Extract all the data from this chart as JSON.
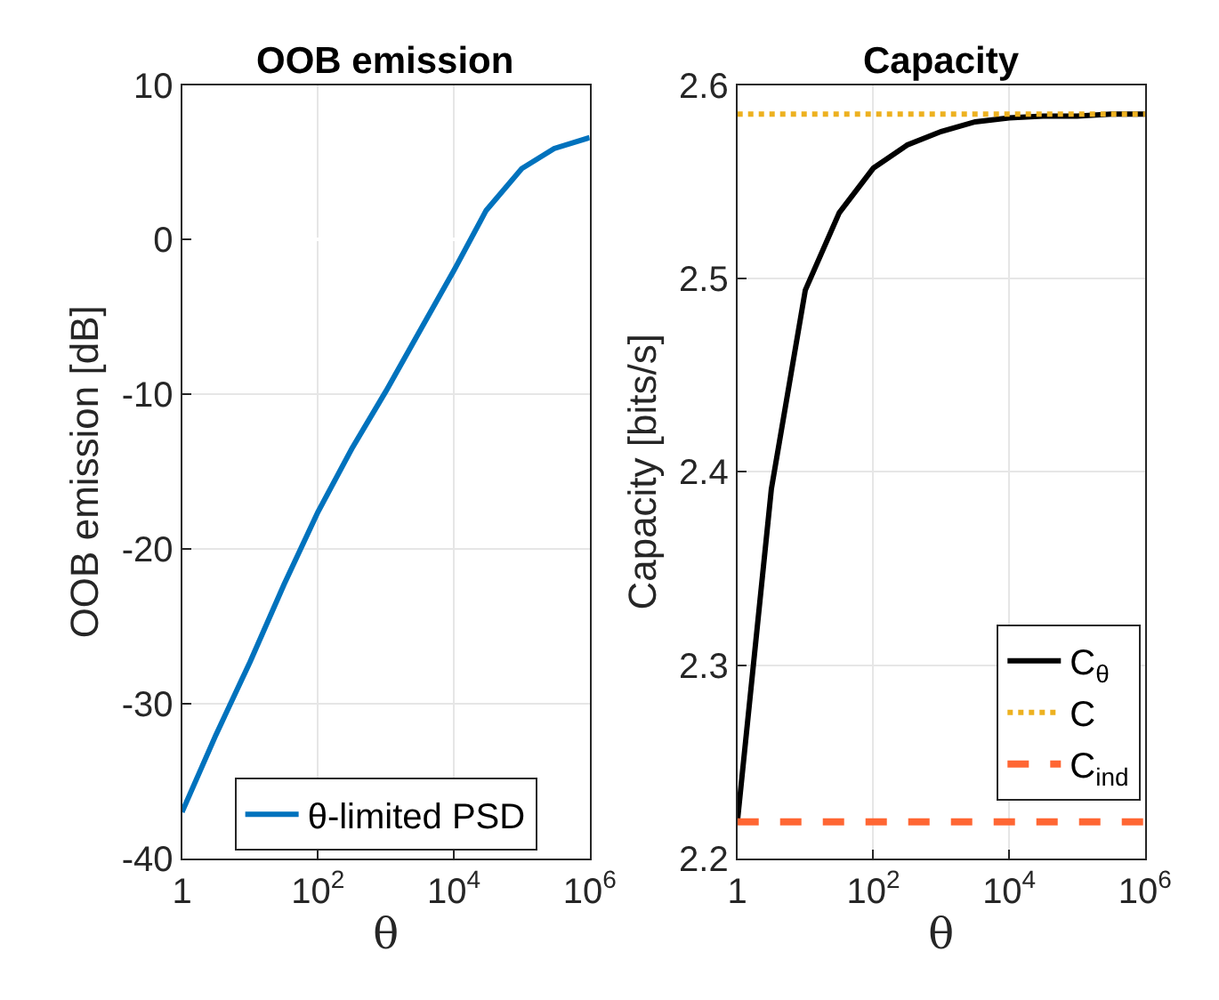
{
  "chart_data": [
    {
      "type": "line",
      "title": "OOB emission",
      "xlabel": "θ",
      "ylabel": "OOB emission [dB]",
      "log": "x",
      "grid": true,
      "legend": "bottom",
      "xlim": [
        1,
        1000000
      ],
      "xticks": [
        1,
        {
          "value": 100,
          "label": "10$^{2}$"
        },
        {
          "value": 10000,
          "label": "10$^{4}$"
        },
        {
          "value": 1000000,
          "label": "10$^{6}$"
        }
      ],
      "ylim": [
        -40,
        10
      ],
      "yticks": [
        -40,
        -30,
        -20,
        -10,
        0,
        10
      ],
      "series": [
        {
          "name": "θ-limited PSD",
          "color": "#0072bd",
          "line_style": "solid",
          "x": [
            1,
            3.16,
            10,
            31.6,
            100,
            316,
            1000,
            3162,
            10000,
            30000,
            100000,
            300000,
            1000000
          ],
          "values": [
            -37,
            -32,
            -27.3,
            -22.3,
            -17.6,
            -13.5,
            -9.8,
            -5.9,
            -2.0,
            1.9,
            4.6,
            5.9,
            6.6
          ]
        }
      ]
    },
    {
      "type": "line",
      "title": "Capacity",
      "xlabel": "θ",
      "ylabel": "Capacity [bits/s]",
      "log": "x",
      "grid": true,
      "legend": "bottom right",
      "xlim": [
        1,
        1000000
      ],
      "xticks": [
        1,
        {
          "value": 100,
          "label": "10$^{2}$"
        },
        {
          "value": 10000,
          "label": "10$^{4}$"
        },
        {
          "value": 1000000,
          "label": "10$^{6}$"
        }
      ],
      "ylim": [
        2.2,
        2.6
      ],
      "yticks": [
        2.2,
        2.3,
        2.4,
        2.5,
        2.6
      ],
      "series": [
        {
          "name": "C$_{θ}$",
          "color": "#000000",
          "line_style": "solid",
          "x": [
            1,
            3.16,
            10,
            31.6,
            100,
            316,
            1000,
            3162,
            10000,
            31623,
            100000,
            316228,
            1000000
          ],
          "values": [
            2.219,
            2.391,
            2.494,
            2.534,
            2.557,
            2.569,
            2.576,
            2.581,
            2.583,
            2.584,
            2.584,
            2.585,
            2.585
          ]
        },
        {
          "name": "C",
          "color": "#edb120",
          "line_style": "dotted",
          "x": [
            1,
            1000000
          ],
          "values": [
            2.585,
            2.585
          ]
        },
        {
          "name": "C$_{ind}$",
          "color": "#ff6633",
          "line_style": "dashed",
          "x": [
            1,
            1000000
          ],
          "values": [
            2.219,
            2.219
          ]
        }
      ]
    }
  ]
}
